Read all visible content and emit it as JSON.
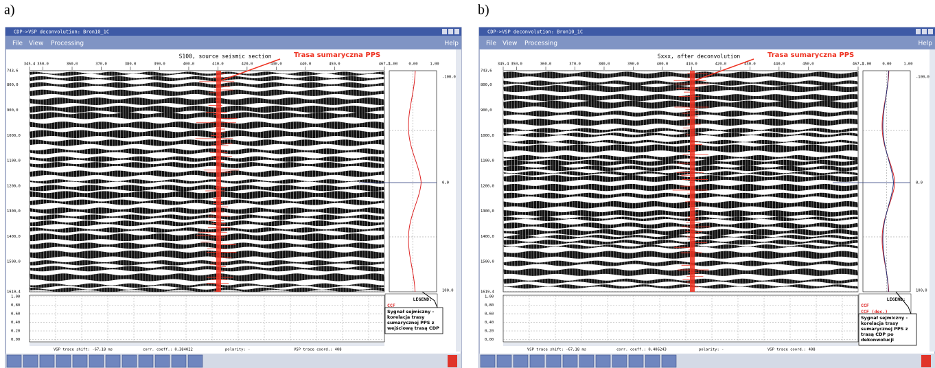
{
  "panels": [
    {
      "label": "a)",
      "window_title": "CDP->VSP deconvolution: Bron10_1C",
      "menu": [
        "File",
        "View",
        "Processing"
      ],
      "help": "Help",
      "plot_title": "S100, source seismic section",
      "callout": "Trasa sumaryczna PPS",
      "x_ticks": [
        "345,4",
        "350,0",
        "360,0",
        "370,0",
        "380,0",
        "390,0",
        "400,0",
        "410,0",
        "420,0",
        "430,0",
        "440,0",
        "450,0",
        "467,1"
      ],
      "corr_ticks": [
        "-1,00",
        "0,00",
        "1,00"
      ],
      "y_ticks": [
        "743,6",
        "800,0",
        "900,0",
        "1000,0",
        "1100,0",
        "1200,0",
        "1300,0",
        "1400,0",
        "1500,0",
        "1619,4"
      ],
      "right_ticks": [
        "-100,0",
        "0,0",
        "100,0"
      ],
      "lower_ticks": [
        "1,00",
        "0,80",
        "0,60",
        "0,40",
        "0,20",
        "0,00"
      ],
      "legend_title": "LEGEND:",
      "legend_items": [
        "CCF"
      ],
      "annotation": [
        "Sygnał sejmiczny -",
        "korelacja trasy",
        "sumarycznej PPS z",
        "wejściową trasą CDP"
      ],
      "status": [
        "VSP trace shift: -67,18 ms",
        "corr. coeff.: 0,384022",
        "polarity: -",
        "VSP trace coord.: 408"
      ]
    },
    {
      "label": "b)",
      "window_title": "CDP->VSP deconvolution: Bron10_1C",
      "menu": [
        "File",
        "View",
        "Processing"
      ],
      "help": "Help",
      "plot_title": "Sxxx, after deconvolution",
      "callout": "Trasa sumaryczna PPS",
      "x_ticks": [
        "345,4",
        "350,0",
        "360,0",
        "370,0",
        "380,0",
        "390,0",
        "400,0",
        "410,0",
        "420,0",
        "430,0",
        "440,0",
        "450,0",
        "467,1"
      ],
      "corr_ticks": [
        "-1,00",
        "0,00",
        "1,00"
      ],
      "y_ticks": [
        "743,6",
        "800,0",
        "900,0",
        "1000,0",
        "1100,0",
        "1200,0",
        "1300,0",
        "1400,0",
        "1500,0",
        "1619,4"
      ],
      "right_ticks": [
        "-100,0",
        "0,0",
        "100,0"
      ],
      "lower_ticks": [
        "1,00",
        "0,80",
        "0,60",
        "0,40",
        "0,20",
        "0,00"
      ],
      "legend_title": "LEGEND:",
      "legend_items": [
        "CCF",
        "CCF (dec.)"
      ],
      "annotation": [
        "Sygnał sejmiczny -",
        "korelacja trasy",
        "sumarycznej PPS z",
        "trasą CDP po",
        "dekonwolucji"
      ],
      "status": [
        "VSP trace shift: -67,18 ms",
        "corr. coeff.: 0,406243",
        "polarity: -",
        "VSP trace coord.: 408"
      ]
    }
  ]
}
